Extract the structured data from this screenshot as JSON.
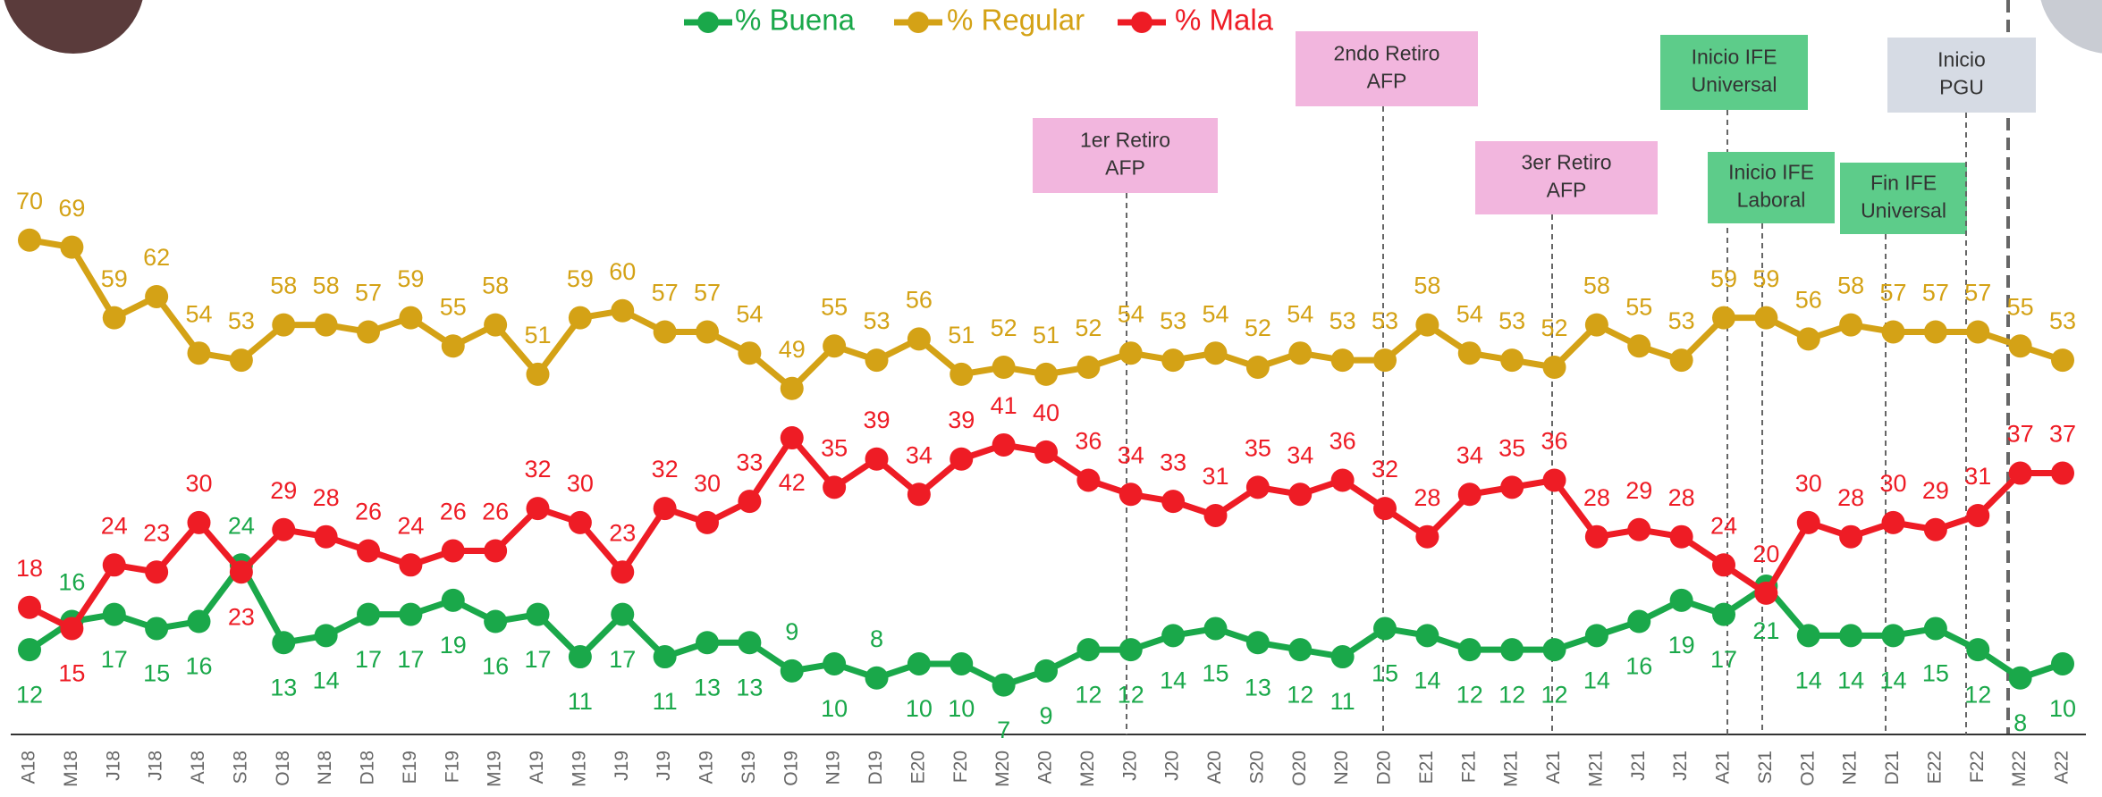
{
  "chart_data": {
    "type": "line",
    "categories": [
      "A18",
      "M18",
      "J18",
      "J18",
      "A18",
      "S18",
      "O18",
      "N18",
      "D18",
      "E19",
      "F19",
      "M19",
      "A19",
      "M19",
      "J19",
      "J19",
      "A19",
      "S19",
      "O19",
      "N19",
      "D19",
      "E20",
      "F20",
      "M20",
      "A20",
      "M20",
      "J20",
      "J20",
      "A20",
      "S20",
      "O20",
      "N20",
      "D20",
      "E21",
      "F21",
      "M21",
      "A21",
      "M21",
      "J21",
      "J21",
      "A21",
      "S21",
      "O21",
      "N21",
      "D21",
      "E22",
      "F22",
      "M22",
      "A22"
    ],
    "series": [
      {
        "name": "% Buena",
        "color": "#1aa84a",
        "values": [
          12,
          16,
          17,
          15,
          16,
          24,
          13,
          14,
          17,
          17,
          19,
          16,
          17,
          11,
          17,
          11,
          13,
          13,
          9,
          10,
          8,
          10,
          10,
          7,
          9,
          12,
          12,
          14,
          15,
          13,
          12,
          11,
          15,
          14,
          12,
          12,
          12,
          14,
          16,
          19,
          17,
          21,
          14,
          14,
          14,
          15,
          12,
          8,
          10
        ]
      },
      {
        "name": "% Regular",
        "color": "#d4a216",
        "values": [
          70,
          69,
          59,
          62,
          54,
          53,
          58,
          58,
          57,
          59,
          55,
          58,
          51,
          59,
          60,
          57,
          57,
          54,
          49,
          55,
          53,
          56,
          51,
          52,
          51,
          52,
          54,
          53,
          54,
          52,
          54,
          53,
          53,
          58,
          54,
          53,
          52,
          58,
          55,
          53,
          59,
          59,
          56,
          58,
          57,
          57,
          57,
          55,
          53
        ]
      },
      {
        "name": "% Mala",
        "color": "#ee1c25",
        "values": [
          18,
          15,
          24,
          23,
          30,
          23,
          29,
          28,
          26,
          24,
          26,
          26,
          32,
          30,
          23,
          32,
          30,
          33,
          42,
          35,
          39,
          34,
          39,
          41,
          40,
          36,
          34,
          33,
          31,
          35,
          34,
          36,
          32,
          28,
          34,
          35,
          36,
          28,
          29,
          28,
          24,
          20,
          30,
          28,
          30,
          29,
          31,
          37,
          37
        ]
      }
    ],
    "ylim": [
      0,
      104
    ],
    "annotations": [
      {
        "lines": [
          "1er Retiro",
          "AFP"
        ]
      },
      {
        "lines": [
          "2ndo Retiro",
          "AFP"
        ]
      },
      {
        "lines": [
          "3er Retiro",
          "AFP"
        ]
      },
      {
        "lines": [
          "Inicio IFE",
          "Universal"
        ]
      },
      {
        "lines": [
          "Inicio IFE",
          "Laboral"
        ]
      },
      {
        "lines": [
          "Fin IFE",
          "Universal"
        ]
      },
      {
        "lines": [
          "Inicio",
          "PGU"
        ]
      }
    ]
  }
}
